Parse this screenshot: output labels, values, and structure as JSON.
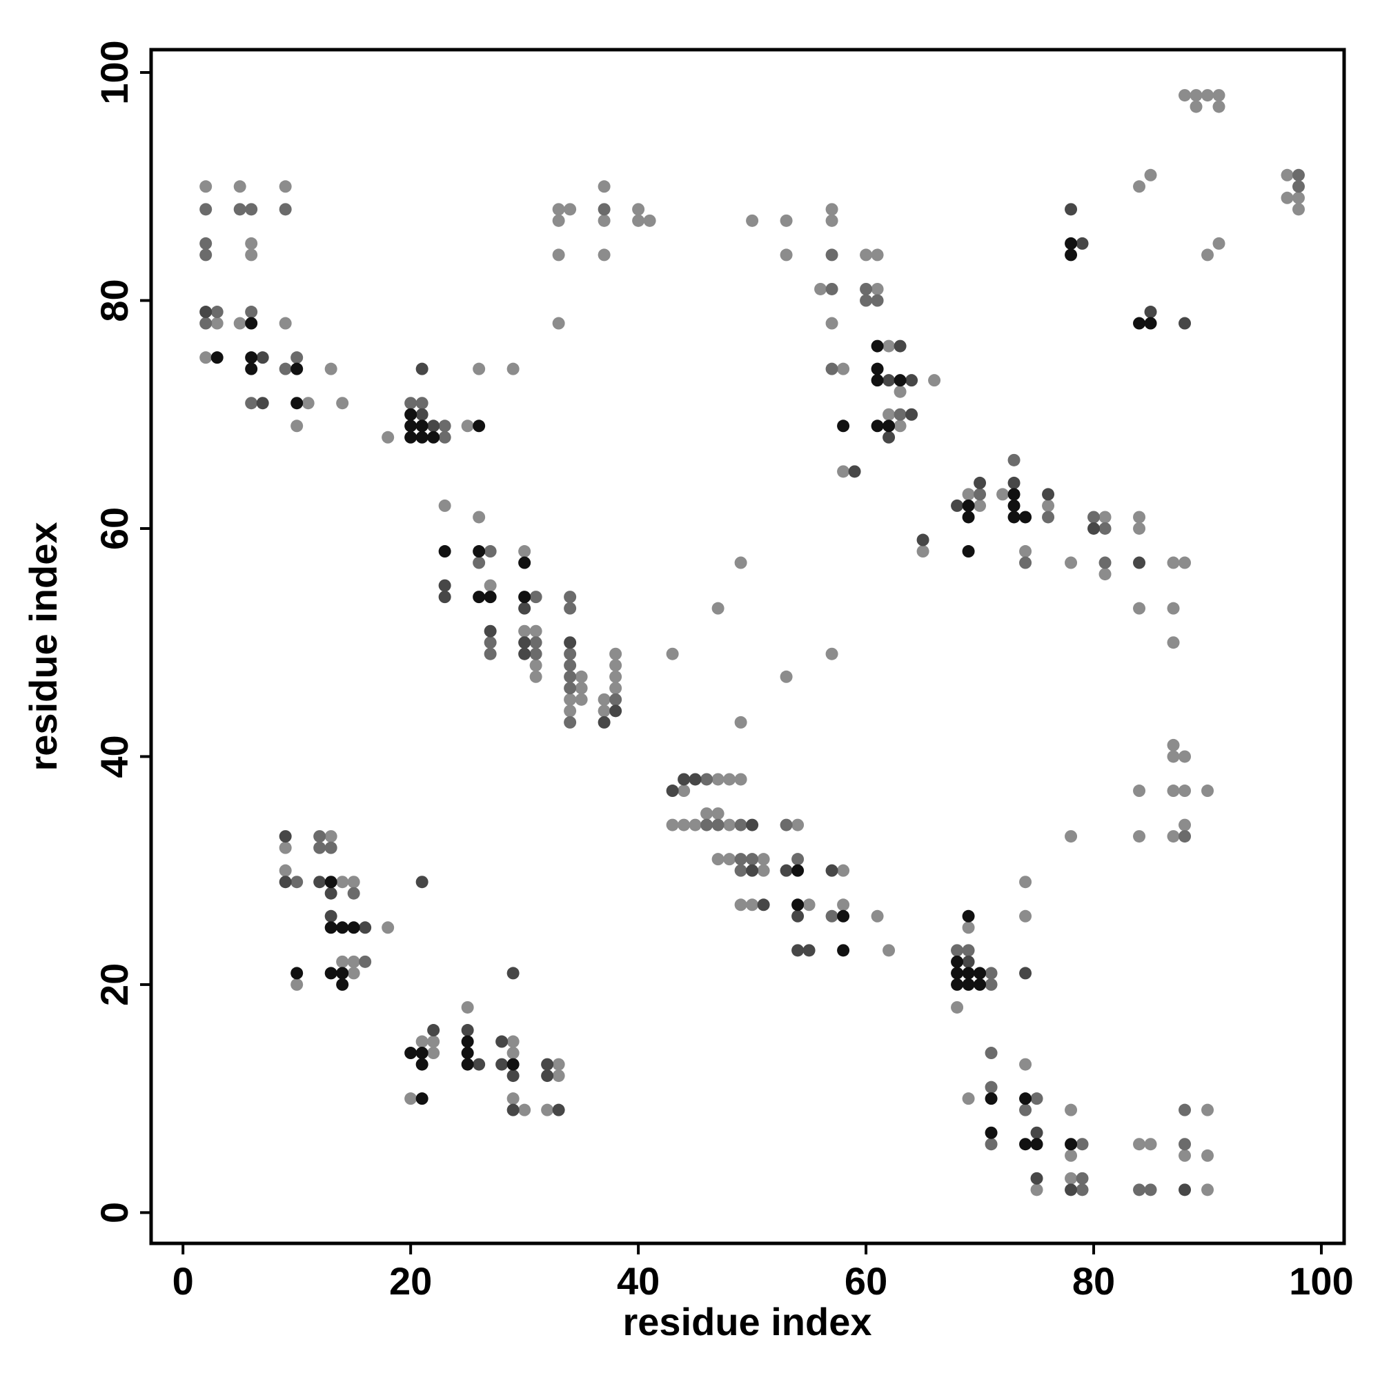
{
  "chart_data": {
    "type": "scatter",
    "x_label": "residue index",
    "y_label": "residue index",
    "xlim": [
      -2.8,
      102
    ],
    "ylim": [
      -2.7,
      102
    ],
    "xticks": [
      0,
      20,
      40,
      60,
      80,
      100
    ],
    "yticks": [
      0,
      20,
      40,
      60,
      80,
      100
    ],
    "grid": false,
    "series": [
      {
        "color": "#8c8c8c",
        "x": [
          2,
          2,
          3,
          5,
          5,
          6,
          6,
          9,
          9,
          10,
          11,
          13,
          14,
          18,
          25,
          26,
          29,
          23,
          26,
          27,
          30,
          30,
          31,
          31,
          31,
          34,
          34,
          35,
          35,
          35,
          37,
          37,
          38,
          38,
          38,
          38,
          33,
          33,
          33,
          33,
          34,
          37,
          37,
          37,
          40,
          40,
          41,
          43,
          50,
          53,
          53,
          56,
          57,
          57,
          57,
          57,
          58,
          58,
          60,
          61,
          61,
          62,
          62,
          63,
          63,
          66,
          47,
          49,
          49,
          53,
          65,
          69,
          70,
          72,
          74,
          76,
          78,
          81,
          81,
          84,
          84,
          84,
          87,
          87,
          87,
          88,
          84,
          85,
          88,
          89,
          89,
          90,
          90,
          91,
          91,
          91,
          97,
          97,
          98,
          98,
          43,
          44,
          44,
          45,
          46,
          47,
          47,
          47,
          48,
          48,
          48,
          49,
          51,
          51,
          50,
          49,
          54,
          55,
          58,
          58,
          61,
          62,
          9,
          9,
          10,
          13,
          14,
          14,
          15,
          15,
          15,
          18,
          20,
          21,
          22,
          22,
          25,
          29,
          29,
          29,
          30,
          32,
          33,
          33,
          68,
          69,
          69,
          74,
          74,
          74,
          75,
          78,
          78,
          78,
          78,
          84,
          84,
          84,
          85,
          87,
          87,
          87,
          87,
          88,
          88,
          88,
          88,
          90,
          90,
          90,
          90
        ],
        "y": [
          90,
          75,
          78,
          90,
          78,
          85,
          84,
          90,
          78,
          69,
          71,
          74,
          71,
          68,
          69,
          74,
          74,
          62,
          61,
          55,
          58,
          51,
          51,
          48,
          47,
          45,
          44,
          47,
          46,
          45,
          45,
          44,
          49,
          48,
          47,
          46,
          88,
          87,
          84,
          78,
          88,
          90,
          87,
          84,
          88,
          87,
          87,
          49,
          87,
          87,
          84,
          81,
          88,
          87,
          78,
          49,
          74,
          65,
          84,
          84,
          81,
          76,
          70,
          72,
          69,
          73,
          53,
          57,
          43,
          47,
          58,
          63,
          62,
          63,
          58,
          62,
          57,
          61,
          56,
          61,
          60,
          53,
          57,
          53,
          50,
          57,
          90,
          91,
          98,
          98,
          97,
          98,
          84,
          98,
          97,
          85,
          91,
          89,
          89,
          88,
          34,
          37,
          34,
          34,
          35,
          38,
          35,
          31,
          38,
          34,
          31,
          38,
          31,
          30,
          27,
          27,
          34,
          27,
          30,
          27,
          26,
          23,
          32,
          30,
          20,
          33,
          29,
          22,
          29,
          22,
          21,
          25,
          10,
          15,
          15,
          14,
          18,
          15,
          14,
          10,
          9,
          9,
          13,
          12,
          18,
          25,
          10,
          29,
          26,
          13,
          2,
          33,
          9,
          5,
          3,
          37,
          33,
          6,
          6,
          41,
          40,
          37,
          33,
          40,
          37,
          34,
          5,
          37,
          9,
          5,
          2
        ]
      },
      {
        "color": "#6b6b6b",
        "x": [
          2,
          2,
          2,
          2,
          3,
          5,
          6,
          6,
          6,
          9,
          9,
          10,
          20,
          21,
          23,
          23,
          26,
          27,
          27,
          27,
          31,
          31,
          31,
          34,
          34,
          34,
          34,
          34,
          34,
          34,
          38,
          37,
          57,
          57,
          57,
          60,
          60,
          61,
          63,
          70,
          73,
          74,
          76,
          80,
          81,
          81,
          98,
          98,
          46,
          46,
          47,
          49,
          49,
          49,
          50,
          53,
          54,
          57,
          10,
          12,
          12,
          13,
          15,
          16,
          68,
          69,
          71,
          71,
          71,
          71,
          71,
          74,
          75,
          79,
          79,
          79,
          84,
          85,
          88,
          88,
          88
        ],
        "y": [
          88,
          85,
          84,
          78,
          79,
          88,
          88,
          79,
          71,
          88,
          74,
          75,
          71,
          71,
          69,
          68,
          57,
          58,
          50,
          49,
          54,
          50,
          49,
          54,
          53,
          49,
          48,
          47,
          46,
          43,
          45,
          88,
          84,
          81,
          74,
          81,
          80,
          80,
          70,
          63,
          66,
          57,
          61,
          61,
          60,
          57,
          91,
          90,
          38,
          34,
          34,
          34,
          31,
          30,
          31,
          34,
          31,
          26,
          29,
          33,
          32,
          32,
          28,
          22,
          23,
          23,
          21,
          20,
          14,
          11,
          6,
          9,
          10,
          6,
          3,
          2,
          2,
          2,
          33,
          9,
          6
        ]
      },
      {
        "color": "#474747",
        "x": [
          2,
          7,
          7,
          21,
          21,
          22,
          23,
          23,
          27,
          30,
          30,
          30,
          34,
          37,
          38,
          62,
          62,
          63,
          64,
          64,
          59,
          65,
          68,
          70,
          73,
          76,
          80,
          84,
          78,
          79,
          85,
          88,
          43,
          44,
          45,
          50,
          50,
          51,
          53,
          54,
          54,
          55,
          57,
          9,
          9,
          12,
          13,
          13,
          16,
          21,
          29,
          22,
          25,
          26,
          28,
          28,
          29,
          29,
          32,
          32,
          33,
          69,
          74,
          75,
          75,
          78,
          88
        ],
        "y": [
          79,
          75,
          71,
          74,
          70,
          69,
          55,
          54,
          51,
          53,
          50,
          49,
          50,
          43,
          44,
          73,
          68,
          76,
          73,
          70,
          65,
          59,
          62,
          64,
          64,
          63,
          60,
          57,
          88,
          85,
          79,
          78,
          37,
          38,
          38,
          34,
          30,
          27,
          30,
          26,
          23,
          23,
          30,
          33,
          29,
          29,
          28,
          26,
          25,
          29,
          21,
          16,
          16,
          13,
          15,
          13,
          12,
          9,
          13,
          12,
          9,
          22,
          21,
          7,
          3,
          2,
          2
        ]
      },
      {
        "color": "#111111",
        "x": [
          3,
          6,
          6,
          6,
          10,
          10,
          20,
          20,
          20,
          21,
          21,
          22,
          26,
          23,
          26,
          26,
          27,
          30,
          30,
          58,
          61,
          61,
          61,
          61,
          62,
          63,
          69,
          69,
          69,
          73,
          73,
          73,
          74,
          78,
          78,
          84,
          85,
          54,
          54,
          58,
          58,
          13,
          13,
          13,
          14,
          14,
          14,
          15,
          10,
          20,
          21,
          21,
          21,
          25,
          25,
          25,
          29,
          68,
          68,
          68,
          69,
          69,
          69,
          70,
          70,
          71,
          71,
          74,
          74,
          75,
          78
        ],
        "y": [
          75,
          78,
          75,
          74,
          74,
          71,
          70,
          69,
          68,
          69,
          68,
          68,
          69,
          58,
          58,
          54,
          54,
          57,
          54,
          69,
          76,
          74,
          73,
          69,
          69,
          73,
          62,
          61,
          58,
          63,
          62,
          61,
          61,
          85,
          84,
          78,
          78,
          30,
          27,
          26,
          23,
          29,
          25,
          21,
          25,
          21,
          20,
          25,
          21,
          14,
          14,
          13,
          10,
          15,
          14,
          13,
          13,
          22,
          21,
          20,
          26,
          21,
          20,
          21,
          20,
          10,
          7,
          10,
          6,
          6,
          6
        ]
      }
    ]
  }
}
